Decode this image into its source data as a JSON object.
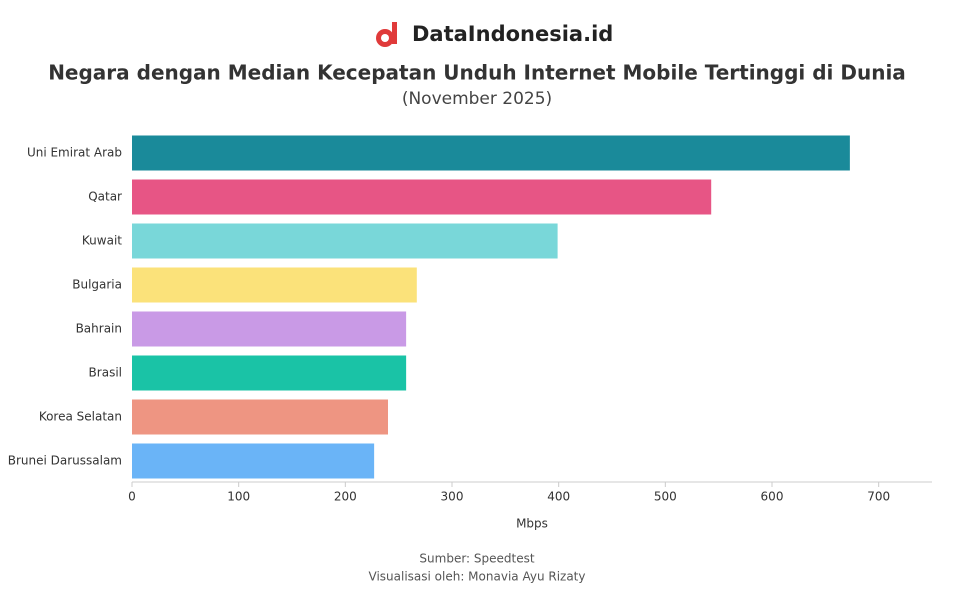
{
  "chart_data": {
    "type": "hbar",
    "brand": "DataIndonesia.id",
    "title": "Negara dengan Median Kecepatan Unduh Internet Mobile Tertinggi di Dunia",
    "subtitle": "(November 2025)",
    "categories": [
      "Uni Emirat Arab",
      "Qatar",
      "Kuwait",
      "Bulgaria",
      "Bahrain",
      "Brasil",
      "Korea Selatan",
      "Brunei Darussalam"
    ],
    "values": [
      673,
      543,
      399,
      267,
      257,
      257,
      240,
      227
    ],
    "colors": [
      "#1a8a9a",
      "#e75585",
      "#79d7d9",
      "#fbe27a",
      "#c99ae6",
      "#1ac3a6",
      "#ee9582",
      "#6ab4f7"
    ],
    "xlim": [
      0,
      750
    ],
    "xticks": [
      0,
      100,
      200,
      300,
      400,
      500,
      600,
      700
    ],
    "x_label": "Mbps",
    "source": "Sumber: Speedtest",
    "credit": "Visualisasi oleh: Monavia Ayu Rizaty"
  }
}
